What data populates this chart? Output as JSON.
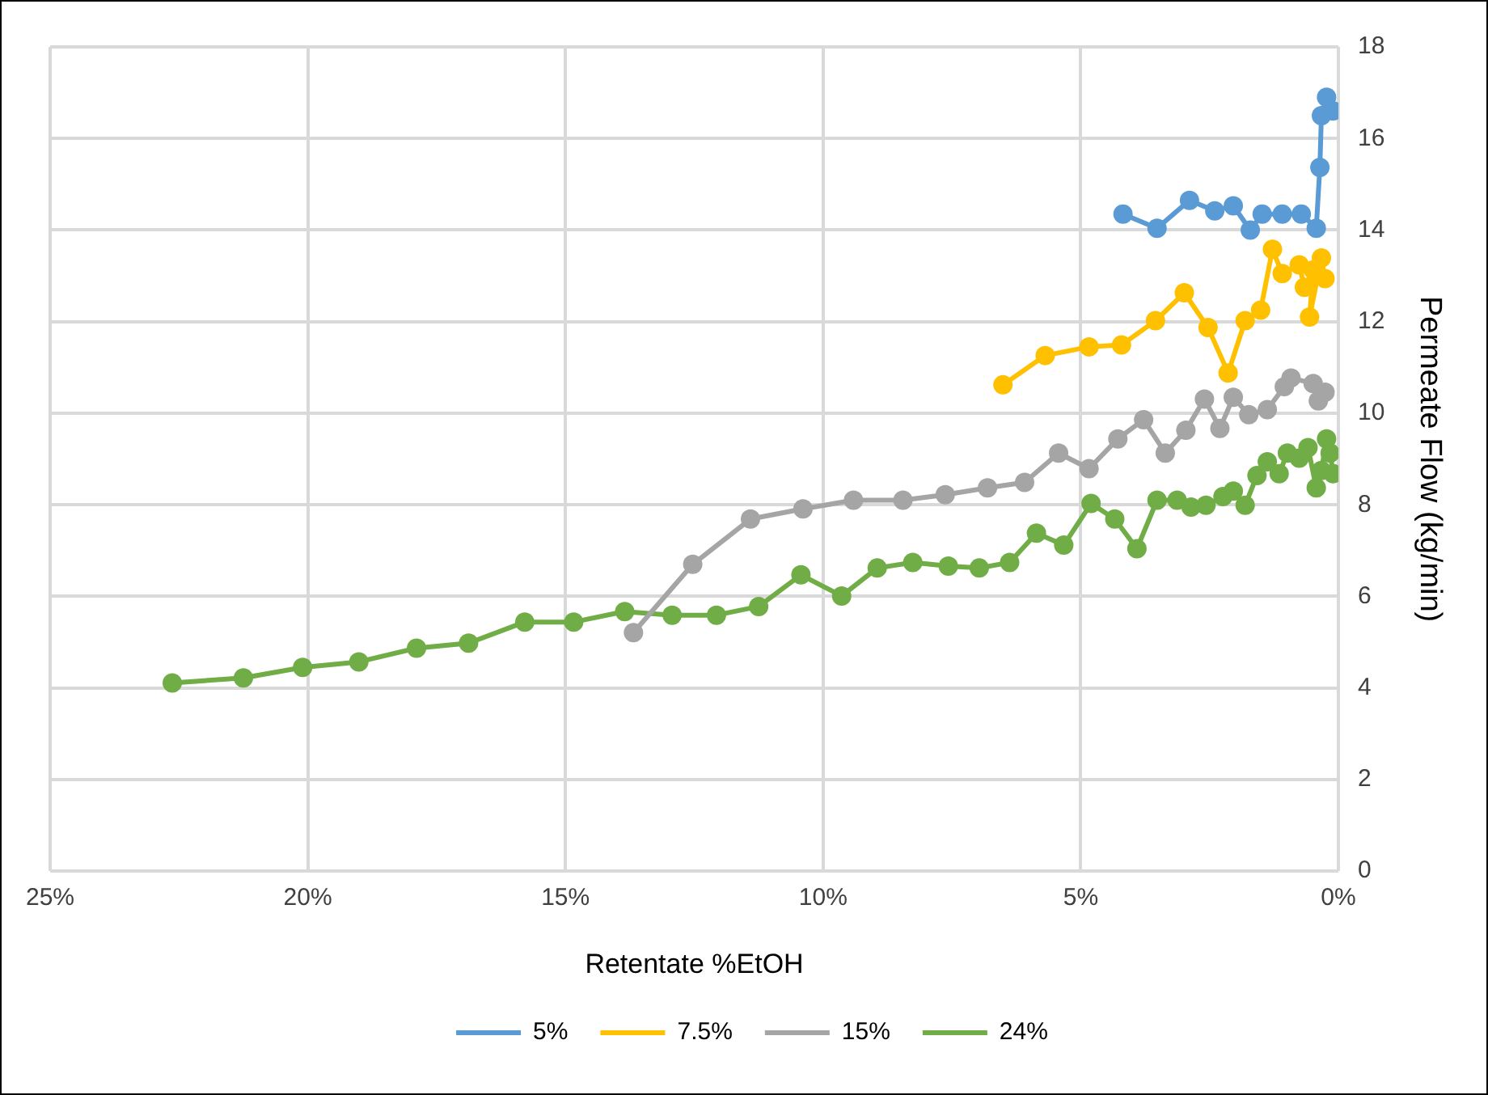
{
  "chart_data": {
    "type": "line",
    "xlabel": "Retentate %EtOH",
    "ylabel": "Permeate Flow (kg/min)",
    "xlim": [
      25,
      0
    ],
    "xticks": [
      {
        "value": 25,
        "label": "25%"
      },
      {
        "value": 20,
        "label": "20%"
      },
      {
        "value": 15,
        "label": "15%"
      },
      {
        "value": 10,
        "label": "10%"
      },
      {
        "value": 5,
        "label": "5%"
      },
      {
        "value": 0,
        "label": "0%"
      }
    ],
    "ylim": [
      0,
      18
    ],
    "yticks": [
      0,
      2,
      4,
      6,
      8,
      10,
      12,
      14,
      16,
      18
    ],
    "grid": true,
    "legend": "bottom",
    "marker": "circle",
    "line_style": "solid",
    "series": [
      {
        "name": "5%",
        "color": "#5b9bd5",
        "x": [
          4.18,
          3.52,
          2.89,
          2.4,
          2.04,
          1.71,
          1.48,
          1.09,
          0.72,
          0.43,
          0.36,
          0.33,
          0.23,
          0.1
        ],
        "values": [
          14.35,
          14.04,
          14.65,
          14.42,
          14.53,
          14.0,
          14.35,
          14.35,
          14.35,
          14.04,
          15.37,
          16.5,
          16.9,
          16.6
        ]
      },
      {
        "name": "7.5%",
        "color": "#ffc000",
        "x": [
          6.51,
          5.69,
          4.84,
          4.21,
          3.55,
          2.99,
          2.53,
          2.14,
          1.81,
          1.51,
          1.28,
          1.09,
          0.76,
          0.66,
          0.49,
          0.56,
          0.33,
          0.26
        ],
        "values": [
          10.62,
          11.26,
          11.45,
          11.49,
          12.02,
          12.63,
          11.87,
          10.88,
          12.02,
          12.25,
          13.58,
          13.05,
          13.24,
          12.75,
          13.13,
          12.1,
          13.39,
          12.94
        ]
      },
      {
        "name": "15%",
        "color": "#a5a5a5",
        "x": [
          13.68,
          12.53,
          11.41,
          10.39,
          9.41,
          8.45,
          7.63,
          6.81,
          6.09,
          5.43,
          4.84,
          4.28,
          3.78,
          3.36,
          2.96,
          2.6,
          2.3,
          2.04,
          1.74,
          1.38,
          1.05,
          0.92,
          0.49,
          0.39,
          0.26
        ],
        "values": [
          5.21,
          6.7,
          7.69,
          7.91,
          8.1,
          8.1,
          8.22,
          8.37,
          8.49,
          9.13,
          8.79,
          9.44,
          9.86,
          9.13,
          9.63,
          10.31,
          9.67,
          10.35,
          9.97,
          10.08,
          10.58,
          10.77,
          10.65,
          10.27,
          10.46
        ]
      },
      {
        "name": "24%",
        "color": "#70ad47",
        "x": [
          22.63,
          21.25,
          20.1,
          19.01,
          17.89,
          16.88,
          15.79,
          14.84,
          13.85,
          12.93,
          12.07,
          11.25,
          10.43,
          9.64,
          8.95,
          8.26,
          7.57,
          6.97,
          6.38,
          5.86,
          5.33,
          4.8,
          4.34,
          3.91,
          3.52,
          3.13,
          2.86,
          2.57,
          2.24,
          2.04,
          1.81,
          1.58,
          1.38,
          1.15,
          0.99,
          0.76,
          0.59,
          0.43,
          0.33,
          0.23,
          0.16,
          0.1
        ],
        "values": [
          4.11,
          4.22,
          4.45,
          4.57,
          4.87,
          4.98,
          5.44,
          5.44,
          5.67,
          5.59,
          5.59,
          5.78,
          6.47,
          6.01,
          6.62,
          6.74,
          6.66,
          6.62,
          6.74,
          7.38,
          7.12,
          8.03,
          7.69,
          7.04,
          8.1,
          8.1,
          7.95,
          7.99,
          8.18,
          8.3,
          7.99,
          8.64,
          8.94,
          8.68,
          9.13,
          9.02,
          9.25,
          8.37,
          8.75,
          9.44,
          9.13,
          8.68
        ]
      }
    ]
  }
}
